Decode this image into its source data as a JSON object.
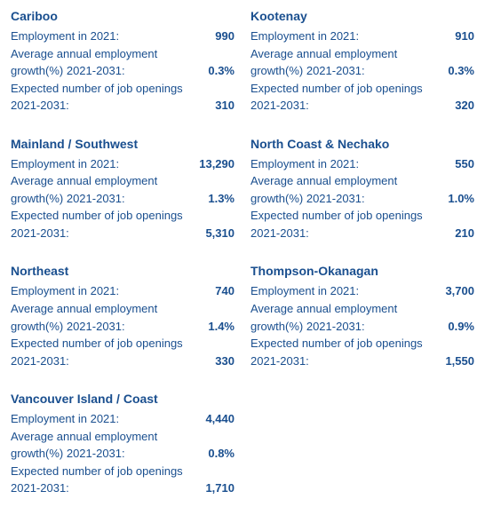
{
  "labels": {
    "employment": "Employment in 2021:",
    "growth1": "Average annual employment",
    "growth2": "growth(%) 2021-2031:",
    "openings1": "Expected number of job openings",
    "openings2": "2021-2031:"
  },
  "regions": [
    {
      "name": "Cariboo",
      "employment": "990",
      "growth": "0.3%",
      "openings": "310"
    },
    {
      "name": "Kootenay",
      "employment": "910",
      "growth": "0.3%",
      "openings": "320"
    },
    {
      "name": "Mainland / Southwest",
      "employment": "13,290",
      "growth": "1.3%",
      "openings": "5,310"
    },
    {
      "name": "North Coast & Nechako",
      "employment": "550",
      "growth": "1.0%",
      "openings": "210"
    },
    {
      "name": "Northeast",
      "employment": "740",
      "growth": "1.4%",
      "openings": "330"
    },
    {
      "name": "Thompson-Okanagan",
      "employment": "3,700",
      "growth": "0.9%",
      "openings": "1,550"
    },
    {
      "name": "Vancouver Island / Coast",
      "employment": "4,440",
      "growth": "0.8%",
      "openings": "1,710"
    }
  ]
}
